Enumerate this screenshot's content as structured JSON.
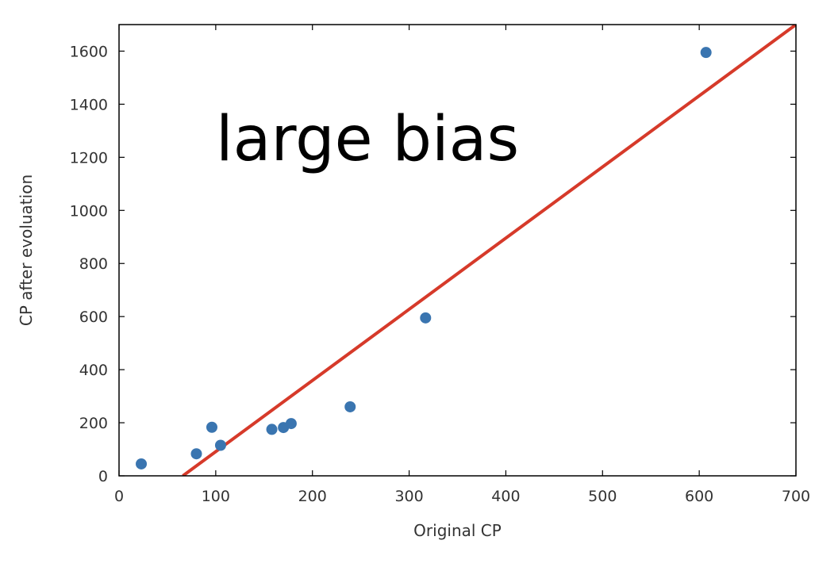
{
  "chart_data": {
    "type": "scatter",
    "title": "",
    "xlabel": "Original CP",
    "ylabel": "CP after evoluation",
    "xlim": [
      0,
      700
    ],
    "ylim": [
      0,
      1700
    ],
    "x_ticks": [
      0,
      100,
      200,
      300,
      400,
      500,
      600,
      700
    ],
    "y_ticks": [
      0,
      200,
      400,
      600,
      800,
      1000,
      1200,
      1400,
      1600
    ],
    "grid": false,
    "legend": "none",
    "annotation": "large bias",
    "colors": {
      "points": "#3a75b0",
      "line": "#d63a2a",
      "axes": "#000000"
    },
    "series": [
      {
        "type": "scatter",
        "points": [
          {
            "x": 23,
            "y": 45
          },
          {
            "x": 80,
            "y": 83
          },
          {
            "x": 96,
            "y": 183
          },
          {
            "x": 105,
            "y": 115
          },
          {
            "x": 158,
            "y": 175
          },
          {
            "x": 170,
            "y": 182
          },
          {
            "x": 178,
            "y": 197
          },
          {
            "x": 239,
            "y": 260
          },
          {
            "x": 317,
            "y": 595
          },
          {
            "x": 607,
            "y": 1595
          }
        ]
      },
      {
        "type": "line",
        "points": [
          {
            "x": 66,
            "y": 0
          },
          {
            "x": 700,
            "y": 1700
          }
        ]
      }
    ]
  }
}
